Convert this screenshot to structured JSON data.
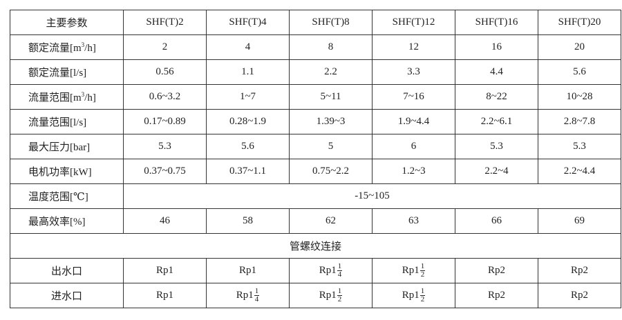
{
  "table": {
    "header": [
      "主要参数",
      "SHF(T)2",
      "SHF(T)4",
      "SHF(T)8",
      "SHF(T)12",
      "SHF(T)16",
      "SHF(T)20"
    ],
    "rows": [
      {
        "label": "额定流量[m3/h]",
        "label_main": "额定流量[m",
        "label_sup": "3",
        "label_tail": "/h]",
        "cells": [
          "2",
          "4",
          "8",
          "12",
          "16",
          "20"
        ]
      },
      {
        "label": "额定流量[l/s]",
        "cells": [
          "0.56",
          "1.1",
          "2.2",
          "3.3",
          "4.4",
          "5.6"
        ]
      },
      {
        "label": "流量范围[m3/h]",
        "label_main": "流量范围[m",
        "label_sup": "3",
        "label_tail": "/h]",
        "cells": [
          "0.6~3.2",
          "1~7",
          "5~11",
          "7~16",
          "8~22",
          "10~28"
        ]
      },
      {
        "label": "流量范围[l/s]",
        "cells": [
          "0.17~0.89",
          "0.28~1.9",
          "1.39~3",
          "1.9~4.4",
          "2.2~6.1",
          "2.8~7.8"
        ]
      },
      {
        "label": "最大压力[bar]",
        "cells": [
          "5.3",
          "5.6",
          "5",
          "6",
          "5.3",
          "5.3"
        ]
      },
      {
        "label": "电机功率[kW]",
        "cells": [
          "0.37~0.75",
          "0.37~1.1",
          "0.75~2.2",
          "1.2~3",
          "2.2~4",
          "2.2~4.4"
        ]
      },
      {
        "label": "温度范围[℃]",
        "span": "-15~105"
      },
      {
        "label": "最高效率[%]",
        "cells": [
          "46",
          "58",
          "62",
          "63",
          "66",
          "69"
        ]
      }
    ],
    "section_title": "管螺纹连接",
    "ports": [
      {
        "label": "出水口",
        "cells": [
          {
            "text": "Rp1"
          },
          {
            "text": "Rp1"
          },
          {
            "text": "Rp1",
            "num": "1",
            "den": "4"
          },
          {
            "text": "Rp1",
            "num": "1",
            "den": "2"
          },
          {
            "text": "Rp2"
          },
          {
            "text": "Rp2"
          }
        ]
      },
      {
        "label": "进水口",
        "cells": [
          {
            "text": "Rp1"
          },
          {
            "text": "Rp1",
            "num": "1",
            "den": "4"
          },
          {
            "text": "Rp1",
            "num": "1",
            "den": "2"
          },
          {
            "text": "Rp1",
            "num": "1",
            "den": "2"
          },
          {
            "text": "Rp2"
          },
          {
            "text": "Rp2"
          }
        ]
      }
    ]
  }
}
